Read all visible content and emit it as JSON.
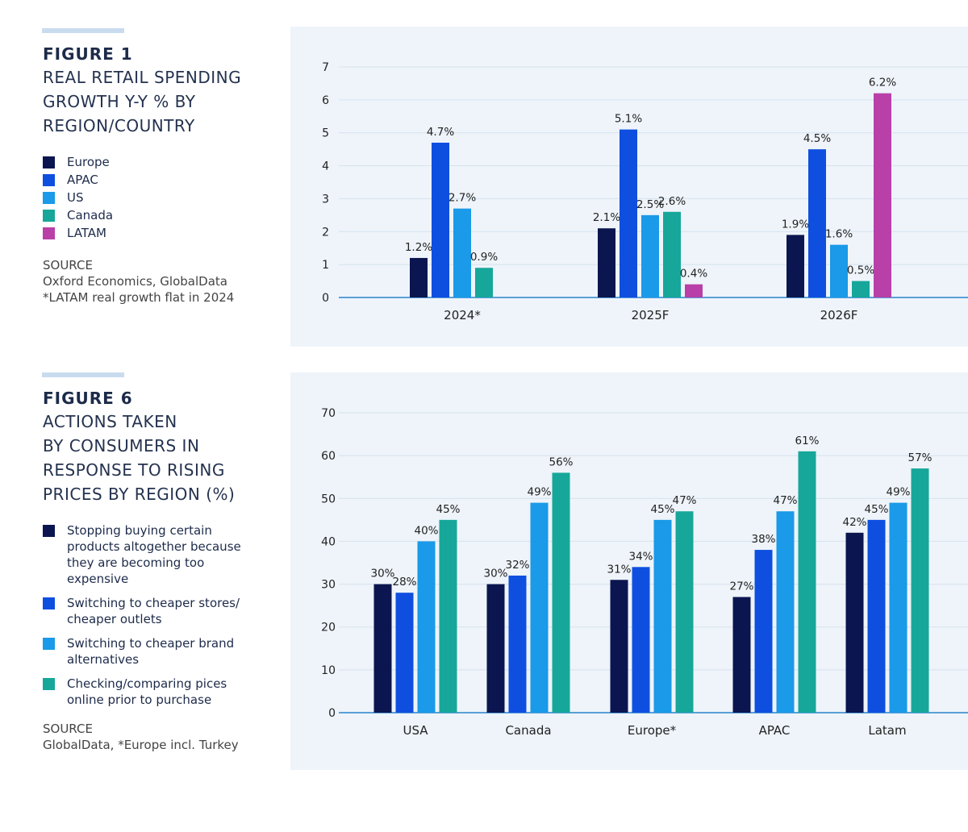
{
  "chart_data": [
    {
      "type": "bar",
      "figure_label": "FIGURE 1",
      "title": "REAL RETAIL SPENDING GROWTH Y-Y % BY REGION/COUNTRY",
      "categories": [
        "2024*",
        "2025F",
        "2026F"
      ],
      "series": [
        {
          "name": "Europe",
          "color": "#0b1650",
          "values": [
            1.2,
            2.1,
            1.9
          ],
          "labels": [
            "1.2%",
            "2.1%",
            "1.9%"
          ]
        },
        {
          "name": "APAC",
          "color": "#0f4fe0",
          "values": [
            4.7,
            5.1,
            4.5
          ],
          "labels": [
            "4.7%",
            "5.1%",
            "4.5%"
          ]
        },
        {
          "name": "US",
          "color": "#1a9ae8",
          "values": [
            2.7,
            2.5,
            1.6
          ],
          "labels": [
            "2.7%",
            "2.5%",
            "1.6%"
          ]
        },
        {
          "name": "Canada",
          "color": "#16a79a",
          "values": [
            0.9,
            2.6,
            0.5
          ],
          "labels": [
            "0.9%",
            "2.6%",
            "0.5%"
          ]
        },
        {
          "name": "LATAM",
          "color": "#b840a8",
          "values": [
            0,
            0.4,
            6.2
          ],
          "labels": [
            "",
            "0.4%",
            "6.2%"
          ]
        }
      ],
      "ylim": [
        0,
        7
      ],
      "yticks": [
        "0",
        "1",
        "2",
        "3",
        "4",
        "5",
        "6",
        "7"
      ],
      "grid": true,
      "legend": "left",
      "source_label": "SOURCE",
      "source_lines": [
        "Oxford Economics, GlobalData",
        "*LATAM real growth flat in 2024"
      ]
    },
    {
      "type": "bar",
      "figure_label": "FIGURE 6",
      "title_lines": [
        "ACTIONS TAKEN",
        "BY CONSUMERS IN",
        "RESPONSE TO RISING",
        "PRICES BY REGION (%)"
      ],
      "categories": [
        "USA",
        "Canada",
        "Europe*",
        "APAC",
        "Latam"
      ],
      "series": [
        {
          "name": "Stopping buying certain products altogether because they are becoming too expensive",
          "color": "#0b1650",
          "values": [
            30,
            30,
            31,
            27,
            42
          ]
        },
        {
          "name": "Switching to cheaper stores/ cheaper outlets",
          "color": "#0f4fe0",
          "values": [
            28,
            32,
            34,
            38,
            45
          ]
        },
        {
          "name": "Switching to cheaper brand alternatives",
          "color": "#1a9ae8",
          "values": [
            40,
            49,
            45,
            47,
            49
          ]
        },
        {
          "name": "Checking/comparing pices online prior to purchase",
          "color": "#16a79a",
          "values": [
            45,
            56,
            47,
            61,
            57
          ]
        }
      ],
      "ylim": [
        0,
        70
      ],
      "yticks": [
        "0",
        "10",
        "20",
        "30",
        "40",
        "50",
        "60",
        "70"
      ],
      "grid": true,
      "legend": "left",
      "source_label": "SOURCE",
      "source_lines": [
        "GlobalData, *Europe incl. Turkey"
      ]
    }
  ]
}
